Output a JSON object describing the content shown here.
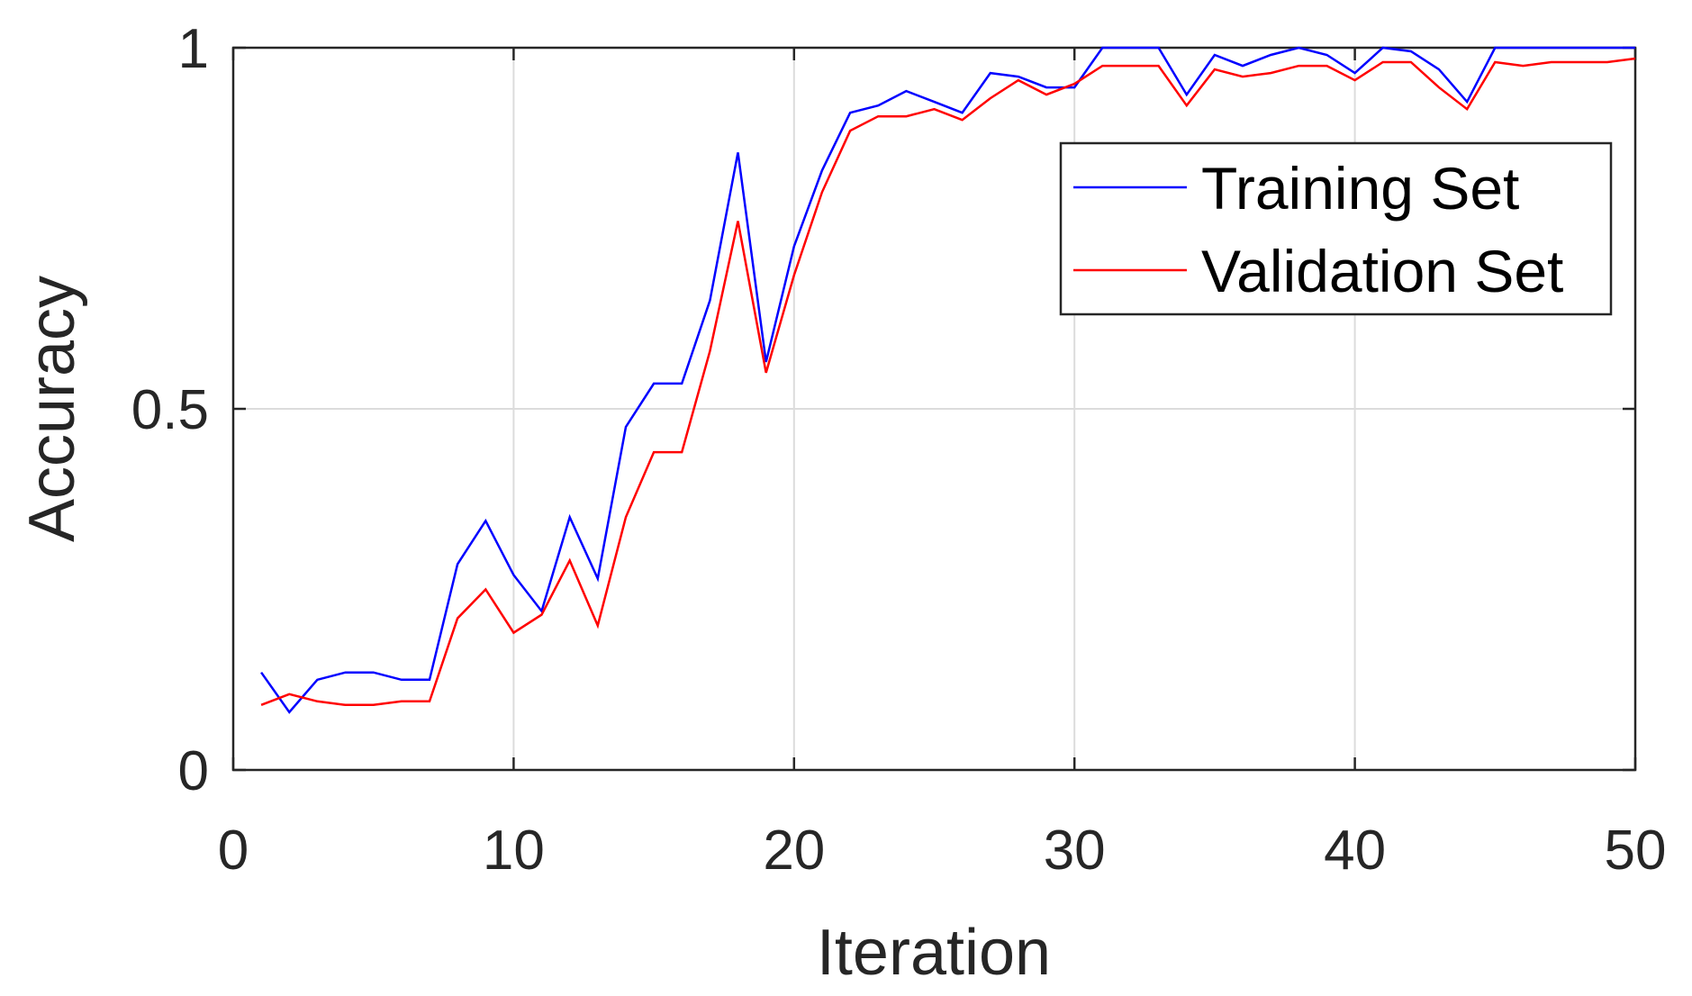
{
  "chart_data": {
    "type": "line",
    "xlabel": "Iteration",
    "ylabel": "Accuracy",
    "xlim": [
      0,
      50
    ],
    "ylim": [
      0,
      1
    ],
    "xticks": [
      0,
      10,
      20,
      30,
      40,
      50
    ],
    "yticks": [
      0,
      0.5,
      1
    ],
    "xtick_labels": [
      "0",
      "10",
      "20",
      "30",
      "40",
      "50"
    ],
    "ytick_labels": [
      "0",
      "0.5",
      "1"
    ],
    "grid": true,
    "legend_position": "top-right",
    "x": [
      1,
      2,
      3,
      4,
      5,
      6,
      7,
      8,
      9,
      10,
      11,
      12,
      13,
      14,
      15,
      16,
      17,
      18,
      19,
      20,
      21,
      22,
      23,
      24,
      25,
      26,
      27,
      28,
      29,
      30,
      31,
      32,
      33,
      34,
      35,
      36,
      37,
      38,
      39,
      40,
      41,
      42,
      43,
      44,
      45,
      46,
      47,
      48,
      49,
      50
    ],
    "series": [
      {
        "name": "Training Set",
        "color": "#0000ff",
        "values": [
          0.135,
          0.08,
          0.125,
          0.135,
          0.135,
          0.125,
          0.125,
          0.285,
          0.345,
          0.27,
          0.22,
          0.35,
          0.265,
          0.475,
          0.535,
          0.535,
          0.65,
          0.855,
          0.565,
          0.725,
          0.83,
          0.91,
          0.92,
          0.94,
          0.925,
          0.91,
          0.965,
          0.96,
          0.945,
          0.945,
          1.0,
          1.0,
          1.0,
          0.935,
          0.99,
          0.975,
          0.99,
          1.0,
          0.99,
          0.965,
          1.0,
          0.995,
          0.97,
          0.925,
          1.0,
          1.0,
          1.0,
          1.0,
          1.0,
          1.0
        ]
      },
      {
        "name": "Validation Set",
        "color": "#ff0000",
        "values": [
          0.09,
          0.105,
          0.095,
          0.09,
          0.09,
          0.095,
          0.095,
          0.21,
          0.25,
          0.19,
          0.215,
          0.29,
          0.2,
          0.35,
          0.44,
          0.44,
          0.58,
          0.76,
          0.55,
          0.685,
          0.8,
          0.885,
          0.905,
          0.905,
          0.915,
          0.9,
          0.93,
          0.955,
          0.935,
          0.95,
          0.975,
          0.975,
          0.975,
          0.92,
          0.97,
          0.96,
          0.965,
          0.975,
          0.975,
          0.955,
          0.98,
          0.98,
          0.945,
          0.915,
          0.98,
          0.975,
          0.98,
          0.98,
          0.98,
          0.985
        ]
      }
    ]
  }
}
